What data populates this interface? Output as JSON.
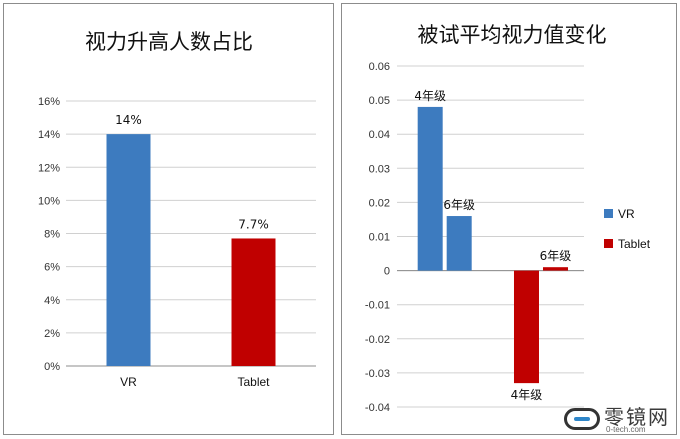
{
  "colors": {
    "vr": "#3d7bbf",
    "tablet": "#c00000",
    "grid": "#d0d0d0",
    "axis": "#8c8c8c"
  },
  "watermark": {
    "text": "零镜网",
    "sub": "0-tech.com"
  },
  "chart_data": [
    {
      "type": "bar",
      "title": "视力升高人数占比",
      "categories": [
        "VR",
        "Tablet"
      ],
      "values": [
        0.14,
        0.077
      ],
      "data_labels": [
        "14%",
        "7.7%"
      ],
      "ylim": [
        0,
        0.16
      ],
      "yticks": [
        "0%",
        "2%",
        "4%",
        "6%",
        "8%",
        "10%",
        "12%",
        "14%",
        "16%"
      ],
      "grid": true,
      "legend": "none"
    },
    {
      "type": "bar",
      "title": "被试平均视力值变化",
      "categories": [
        "VR",
        "Tablet"
      ],
      "series": [
        {
          "name": "VR",
          "values": [
            0.048,
            0.016
          ],
          "labels": [
            "4年级",
            "6年级"
          ]
        },
        {
          "name": "Tablet",
          "values": [
            -0.033,
            0.001
          ],
          "labels": [
            "4年级",
            "6年级"
          ]
        }
      ],
      "ylim": [
        -0.04,
        0.06
      ],
      "yticks": [
        "0.06",
        "0.05",
        "0.04",
        "0.03",
        "0.02",
        "0.01",
        "0",
        "-0.01",
        "-0.02",
        "-0.03",
        "-0.04"
      ],
      "grid": true,
      "legend": "right"
    }
  ]
}
